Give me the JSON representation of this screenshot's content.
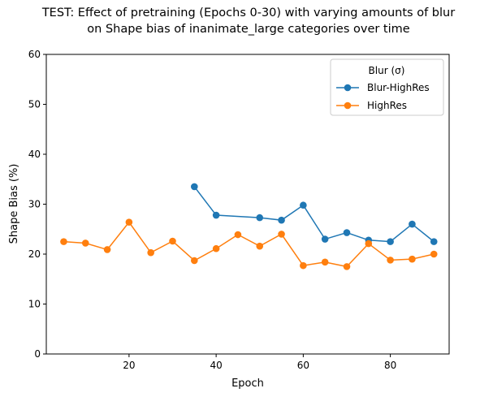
{
  "chart_data": {
    "type": "line",
    "title_lines": [
      "TEST: Effect of pretraining (Epochs 0-30) with varying amounts of blur",
      "on Shape bias of inanimate_large categories over time"
    ],
    "xlabel": "Epoch",
    "ylabel": "Shape Bias (%)",
    "xlim": [
      1,
      93.5
    ],
    "ylim": [
      0,
      60
    ],
    "xticks": [
      20,
      40,
      60,
      80
    ],
    "yticks": [
      0,
      10,
      20,
      30,
      40,
      50,
      60
    ],
    "grid": false,
    "legend": {
      "title": "Blur (σ)",
      "placement": "top-right"
    },
    "series": [
      {
        "name": "Blur-HighRes",
        "color": "#1f77b4",
        "x": [
          35,
          40,
          50,
          55,
          60,
          65,
          70,
          75,
          80,
          85,
          90
        ],
        "values": [
          33.5,
          27.8,
          27.3,
          26.8,
          29.8,
          23.0,
          24.3,
          22.8,
          22.5,
          26.0,
          22.5
        ]
      },
      {
        "name": "HighRes",
        "color": "#ff7f0e",
        "x": [
          5,
          10,
          15,
          20,
          25,
          30,
          35,
          40,
          45,
          50,
          55,
          60,
          65,
          70,
          75,
          80,
          85,
          90
        ],
        "values": [
          22.5,
          22.2,
          20.9,
          26.4,
          20.3,
          22.6,
          18.7,
          21.1,
          23.9,
          21.6,
          24.0,
          17.7,
          18.4,
          17.5,
          22.1,
          18.8,
          19.0,
          20.0
        ]
      }
    ]
  }
}
